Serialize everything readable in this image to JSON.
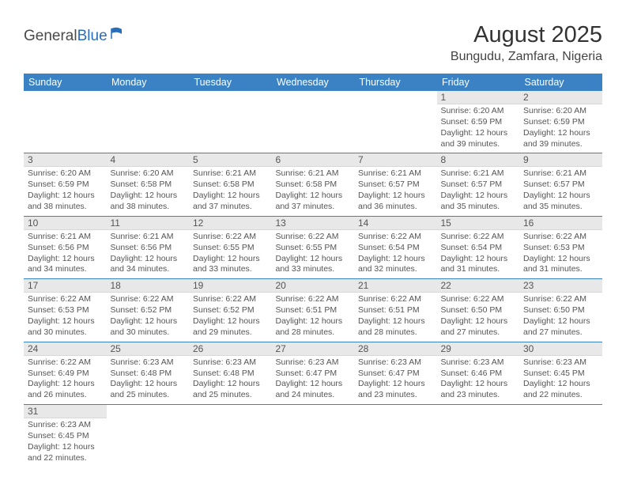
{
  "logo": {
    "text1": "General",
    "text2": "Blue"
  },
  "title": "August 2025",
  "location": "Bungudu, Zamfara, Nigeria",
  "colors": {
    "header_bg": "#3b82c4",
    "header_text": "#ffffff",
    "daynum_bg": "#e8e8e8",
    "row_border": "#3b82c4",
    "body_text": "#555555"
  },
  "weekdays": [
    "Sunday",
    "Monday",
    "Tuesday",
    "Wednesday",
    "Thursday",
    "Friday",
    "Saturday"
  ],
  "weeks": [
    [
      null,
      null,
      null,
      null,
      null,
      {
        "n": "1",
        "sr": "6:20 AM",
        "ss": "6:59 PM",
        "dl": "12 hours and 39 minutes."
      },
      {
        "n": "2",
        "sr": "6:20 AM",
        "ss": "6:59 PM",
        "dl": "12 hours and 39 minutes."
      }
    ],
    [
      {
        "n": "3",
        "sr": "6:20 AM",
        "ss": "6:59 PM",
        "dl": "12 hours and 38 minutes."
      },
      {
        "n": "4",
        "sr": "6:20 AM",
        "ss": "6:58 PM",
        "dl": "12 hours and 38 minutes."
      },
      {
        "n": "5",
        "sr": "6:21 AM",
        "ss": "6:58 PM",
        "dl": "12 hours and 37 minutes."
      },
      {
        "n": "6",
        "sr": "6:21 AM",
        "ss": "6:58 PM",
        "dl": "12 hours and 37 minutes."
      },
      {
        "n": "7",
        "sr": "6:21 AM",
        "ss": "6:57 PM",
        "dl": "12 hours and 36 minutes."
      },
      {
        "n": "8",
        "sr": "6:21 AM",
        "ss": "6:57 PM",
        "dl": "12 hours and 35 minutes."
      },
      {
        "n": "9",
        "sr": "6:21 AM",
        "ss": "6:57 PM",
        "dl": "12 hours and 35 minutes."
      }
    ],
    [
      {
        "n": "10",
        "sr": "6:21 AM",
        "ss": "6:56 PM",
        "dl": "12 hours and 34 minutes."
      },
      {
        "n": "11",
        "sr": "6:21 AM",
        "ss": "6:56 PM",
        "dl": "12 hours and 34 minutes."
      },
      {
        "n": "12",
        "sr": "6:22 AM",
        "ss": "6:55 PM",
        "dl": "12 hours and 33 minutes."
      },
      {
        "n": "13",
        "sr": "6:22 AM",
        "ss": "6:55 PM",
        "dl": "12 hours and 33 minutes."
      },
      {
        "n": "14",
        "sr": "6:22 AM",
        "ss": "6:54 PM",
        "dl": "12 hours and 32 minutes."
      },
      {
        "n": "15",
        "sr": "6:22 AM",
        "ss": "6:54 PM",
        "dl": "12 hours and 31 minutes."
      },
      {
        "n": "16",
        "sr": "6:22 AM",
        "ss": "6:53 PM",
        "dl": "12 hours and 31 minutes."
      }
    ],
    [
      {
        "n": "17",
        "sr": "6:22 AM",
        "ss": "6:53 PM",
        "dl": "12 hours and 30 minutes."
      },
      {
        "n": "18",
        "sr": "6:22 AM",
        "ss": "6:52 PM",
        "dl": "12 hours and 30 minutes."
      },
      {
        "n": "19",
        "sr": "6:22 AM",
        "ss": "6:52 PM",
        "dl": "12 hours and 29 minutes."
      },
      {
        "n": "20",
        "sr": "6:22 AM",
        "ss": "6:51 PM",
        "dl": "12 hours and 28 minutes."
      },
      {
        "n": "21",
        "sr": "6:22 AM",
        "ss": "6:51 PM",
        "dl": "12 hours and 28 minutes."
      },
      {
        "n": "22",
        "sr": "6:22 AM",
        "ss": "6:50 PM",
        "dl": "12 hours and 27 minutes."
      },
      {
        "n": "23",
        "sr": "6:22 AM",
        "ss": "6:50 PM",
        "dl": "12 hours and 27 minutes."
      }
    ],
    [
      {
        "n": "24",
        "sr": "6:22 AM",
        "ss": "6:49 PM",
        "dl": "12 hours and 26 minutes."
      },
      {
        "n": "25",
        "sr": "6:23 AM",
        "ss": "6:48 PM",
        "dl": "12 hours and 25 minutes."
      },
      {
        "n": "26",
        "sr": "6:23 AM",
        "ss": "6:48 PM",
        "dl": "12 hours and 25 minutes."
      },
      {
        "n": "27",
        "sr": "6:23 AM",
        "ss": "6:47 PM",
        "dl": "12 hours and 24 minutes."
      },
      {
        "n": "28",
        "sr": "6:23 AM",
        "ss": "6:47 PM",
        "dl": "12 hours and 23 minutes."
      },
      {
        "n": "29",
        "sr": "6:23 AM",
        "ss": "6:46 PM",
        "dl": "12 hours and 23 minutes."
      },
      {
        "n": "30",
        "sr": "6:23 AM",
        "ss": "6:45 PM",
        "dl": "12 hours and 22 minutes."
      }
    ],
    [
      {
        "n": "31",
        "sr": "6:23 AM",
        "ss": "6:45 PM",
        "dl": "12 hours and 22 minutes."
      },
      null,
      null,
      null,
      null,
      null,
      null
    ]
  ],
  "labels": {
    "sunrise": "Sunrise:",
    "sunset": "Sunset:",
    "daylight": "Daylight:"
  }
}
